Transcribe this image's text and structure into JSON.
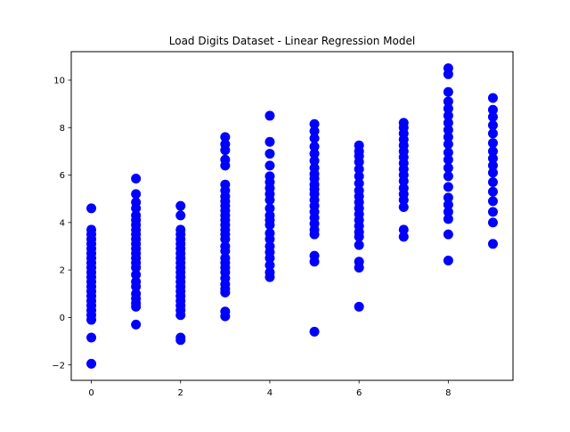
{
  "chart_data": {
    "type": "scatter",
    "title": "Load Digits Dataset - Linear Regression Model",
    "xlabel": "",
    "ylabel": "",
    "xlim": [
      -0.45,
      9.45
    ],
    "ylim": [
      -2.65,
      11.2
    ],
    "xticks": [
      0,
      2,
      4,
      6,
      8
    ],
    "yticks": [
      -2,
      0,
      2,
      4,
      6,
      8,
      10
    ],
    "grid": false,
    "legend": "none",
    "marker_color": "#0000ff",
    "series": [
      {
        "values": [
          {
            "x": 0,
            "points": [
              -1.95,
              -0.85,
              -0.1,
              0.1,
              0.3,
              0.5,
              0.7,
              0.9,
              1.1,
              1.3,
              1.5,
              1.7,
              1.9,
              2.1,
              2.3,
              2.5,
              2.7,
              2.9,
              3.1,
              3.3,
              3.5,
              3.7,
              4.6
            ]
          },
          {
            "x": 1,
            "points": [
              -0.3,
              0.45,
              0.6,
              0.8,
              1.0,
              1.3,
              1.5,
              1.8,
              2.1,
              2.3,
              2.5,
              2.7,
              2.9,
              3.1,
              3.3,
              3.5,
              3.7,
              3.9,
              4.1,
              4.3,
              4.6,
              4.85,
              5.2,
              5.85
            ]
          },
          {
            "x": 2,
            "points": [
              -0.95,
              -0.85,
              0.1,
              0.3,
              0.5,
              0.7,
              0.9,
              1.1,
              1.3,
              1.5,
              1.7,
              1.9,
              2.1,
              2.3,
              2.5,
              2.7,
              2.9,
              3.1,
              3.3,
              3.5,
              3.7,
              4.3,
              4.7
            ]
          },
          {
            "x": 3,
            "points": [
              0.05,
              0.25,
              1.05,
              1.2,
              1.4,
              1.65,
              1.9,
              2.1,
              2.3,
              2.5,
              2.8,
              3.0,
              3.3,
              3.5,
              3.7,
              3.9,
              4.1,
              4.3,
              4.5,
              4.7,
              4.9,
              5.1,
              5.35,
              5.6,
              6.4,
              6.65,
              7.05,
              7.3,
              7.6
            ]
          },
          {
            "x": 4,
            "points": [
              1.7,
              1.9,
              2.2,
              2.5,
              2.75,
              3.0,
              3.3,
              3.55,
              3.9,
              4.1,
              4.3,
              4.6,
              4.95,
              5.2,
              5.45,
              5.7,
              5.95,
              6.4,
              6.9,
              7.4,
              8.5
            ]
          },
          {
            "x": 5,
            "points": [
              -0.6,
              2.35,
              2.6,
              3.5,
              3.7,
              3.95,
              4.2,
              4.45,
              4.7,
              4.95,
              5.2,
              5.4,
              5.6,
              5.85,
              6.05,
              6.3,
              6.6,
              6.9,
              7.2,
              7.55,
              7.85,
              8.15
            ]
          },
          {
            "x": 6,
            "points": [
              0.45,
              2.1,
              2.35,
              3.05,
              3.4,
              3.6,
              3.85,
              4.1,
              4.35,
              4.6,
              4.85,
              5.1,
              5.35,
              5.65,
              5.95,
              6.25,
              6.55,
              6.8,
              7.0,
              7.25
            ]
          },
          {
            "x": 7,
            "points": [
              3.4,
              3.7,
              4.65,
              4.95,
              5.2,
              5.45,
              5.75,
              6.0,
              6.25,
              6.5,
              6.75,
              7.0,
              7.25,
              7.5,
              7.75,
              8.0,
              8.2
            ]
          },
          {
            "x": 8,
            "points": [
              2.4,
              3.5,
              4.15,
              4.45,
              4.75,
              5.05,
              5.5,
              5.95,
              6.3,
              6.65,
              6.95,
              7.3,
              7.6,
              7.9,
              8.2,
              8.5,
              8.8,
              9.1,
              9.5,
              10.25,
              10.5
            ]
          },
          {
            "x": 9,
            "points": [
              3.1,
              4.0,
              4.45,
              4.9,
              5.3,
              5.7,
              6.1,
              6.4,
              6.7,
              7.0,
              7.35,
              7.75,
              8.1,
              8.45,
              8.75,
              9.25
            ]
          }
        ]
      }
    ]
  }
}
